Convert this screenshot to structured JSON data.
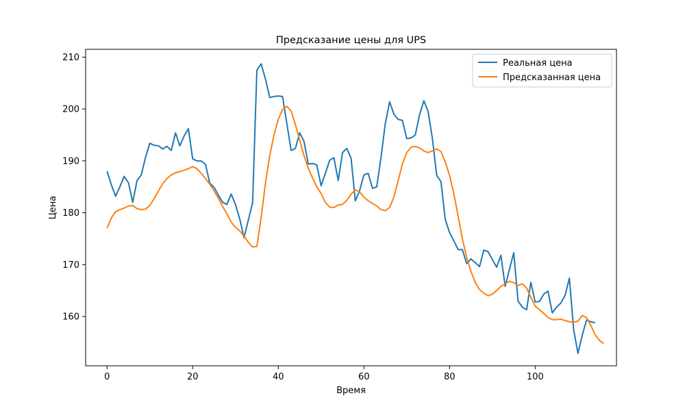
{
  "chart_data": {
    "type": "line",
    "title": "Предсказание цены для UPS",
    "xlabel": "Время",
    "ylabel": "Цена",
    "xlim": [
      -5,
      119
    ],
    "ylim": [
      150.5,
      211.5
    ],
    "xticks": [
      0,
      20,
      40,
      60,
      80,
      100
    ],
    "yticks": [
      160,
      170,
      180,
      190,
      200,
      210
    ],
    "grid": false,
    "legend_position": "upper right",
    "series": [
      {
        "name": "Реальная цена",
        "color": "#1f77b4",
        "values": [
          188.0,
          185.4,
          183.2,
          185.0,
          187.0,
          185.8,
          182.0,
          186.2,
          187.3,
          190.7,
          193.4,
          193.0,
          192.9,
          192.3,
          192.8,
          192.0,
          195.4,
          192.9,
          194.8,
          196.2,
          190.4,
          190.0,
          190.0,
          189.3,
          185.7,
          184.9,
          183.4,
          182.0,
          181.6,
          183.6,
          181.6,
          178.8,
          175.2,
          178.6,
          181.9,
          207.5,
          208.7,
          205.8,
          202.2,
          202.4,
          202.5,
          202.4,
          197.2,
          192.0,
          192.4,
          195.4,
          193.8,
          189.4,
          189.5,
          189.2,
          185.2,
          187.6,
          190.1,
          190.6,
          186.2,
          191.6,
          192.4,
          190.5,
          182.3,
          184.3,
          187.3,
          187.6,
          184.7,
          185.0,
          190.7,
          197.2,
          201.4,
          199.0,
          198.0,
          197.8,
          194.3,
          194.4,
          195.0,
          198.9,
          201.6,
          199.5,
          194.3,
          187.2,
          186.0,
          178.7,
          176.2,
          174.6,
          172.9,
          172.9,
          170.2,
          171.1,
          170.4,
          169.6,
          172.8,
          172.5,
          171.0,
          169.5,
          171.8,
          165.8,
          169.1,
          172.3,
          163.0,
          161.8,
          161.3,
          166.6,
          162.8,
          162.9,
          164.3,
          164.9,
          160.7,
          161.8,
          162.6,
          164.1,
          167.4,
          157.4,
          152.9,
          156.4,
          159.3,
          159.0,
          158.8
        ]
      },
      {
        "name": "Предсказанная цена",
        "color": "#ff7f0e",
        "values": [
          177.0,
          179.0,
          180.2,
          180.6,
          180.9,
          181.3,
          181.4,
          180.8,
          180.6,
          180.7,
          181.4,
          182.7,
          184.2,
          185.6,
          186.6,
          187.3,
          187.7,
          187.9,
          188.2,
          188.5,
          188.9,
          188.5,
          187.6,
          186.6,
          185.5,
          184.2,
          182.8,
          181.2,
          179.8,
          178.2,
          177.2,
          176.5,
          175.5,
          174.3,
          173.4,
          173.5,
          179.1,
          185.7,
          191.0,
          195.0,
          198.0,
          199.9,
          200.5,
          199.6,
          197.0,
          194.0,
          191.0,
          188.6,
          186.7,
          185.0,
          183.7,
          182.0,
          181.1,
          181.0,
          181.5,
          181.6,
          182.4,
          183.6,
          184.4,
          184.0,
          183.0,
          182.3,
          181.8,
          181.3,
          180.6,
          180.4,
          181.0,
          183.0,
          186.2,
          189.4,
          191.6,
          192.6,
          192.8,
          192.5,
          191.9,
          191.6,
          191.9,
          192.3,
          191.8,
          189.8,
          187.2,
          183.7,
          179.4,
          175.0,
          171.4,
          168.7,
          166.6,
          165.2,
          164.5,
          164.0,
          164.3,
          165.0,
          165.8,
          166.3,
          166.8,
          166.5,
          166.0,
          166.3,
          165.5,
          163.7,
          162.0,
          161.3,
          160.6,
          159.8,
          159.4,
          159.4,
          159.5,
          159.2,
          159.0,
          158.9,
          159.1,
          160.2,
          159.8,
          158.3,
          156.5,
          155.4,
          154.8
        ]
      }
    ]
  }
}
